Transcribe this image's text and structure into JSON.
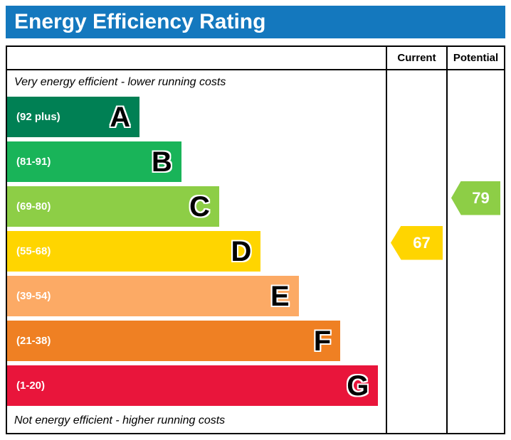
{
  "title": "Energy Efficiency Rating",
  "columns": {
    "current": "Current",
    "potential": "Potential"
  },
  "notes": {
    "top": "Very energy efficient - lower running costs",
    "bottom": "Not energy efficient - higher running costs"
  },
  "bands": [
    {
      "letter": "A",
      "range": "(92 plus)",
      "color": "#008054",
      "width_pct": 35
    },
    {
      "letter": "B",
      "range": "(81-91)",
      "color": "#19b459",
      "width_pct": 46
    },
    {
      "letter": "C",
      "range": "(69-80)",
      "color": "#8dce46",
      "width_pct": 56
    },
    {
      "letter": "D",
      "range": "(55-68)",
      "color": "#ffd500",
      "width_pct": 67
    },
    {
      "letter": "E",
      "range": "(39-54)",
      "color": "#fcaa65",
      "width_pct": 77
    },
    {
      "letter": "F",
      "range": "(21-38)",
      "color": "#ef8023",
      "width_pct": 88
    },
    {
      "letter": "G",
      "range": "(1-20)",
      "color": "#e9153b",
      "width_pct": 98
    }
  ],
  "markers": {
    "current": {
      "value": "67",
      "color": "#ffd500",
      "band_index": 3
    },
    "potential": {
      "value": "79",
      "color": "#8dce46",
      "band_index": 2
    }
  },
  "theme": {
    "title_bg": "#1478be",
    "title_fg": "#ffffff",
    "border": "#000000"
  },
  "chart_data": {
    "type": "bar",
    "title": "Energy Efficiency Rating",
    "categories": [
      "A",
      "B",
      "C",
      "D",
      "E",
      "F",
      "G"
    ],
    "ranges": [
      "92 plus",
      "81-91",
      "69-80",
      "55-68",
      "39-54",
      "21-38",
      "1-20"
    ],
    "bar_lengths_pct": [
      35,
      46,
      56,
      67,
      77,
      88,
      98
    ],
    "colors": [
      "#008054",
      "#19b459",
      "#8dce46",
      "#ffd500",
      "#fcaa65",
      "#ef8023",
      "#e9153b"
    ],
    "current": {
      "value": 67,
      "band": "D"
    },
    "potential": {
      "value": 79,
      "band": "C"
    },
    "legend": [
      "Current",
      "Potential"
    ],
    "annotations": [
      "Very energy efficient - lower running costs",
      "Not energy efficient - higher running costs"
    ]
  }
}
